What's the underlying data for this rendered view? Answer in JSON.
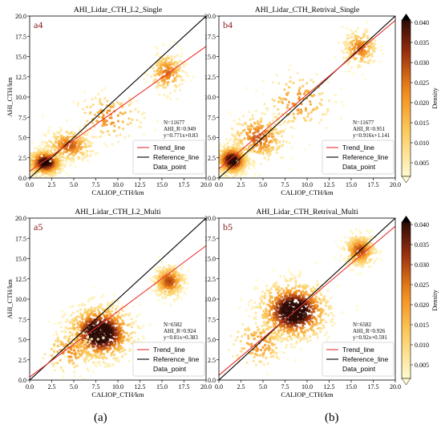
{
  "panels": [
    {
      "title": "AHI_Lidar_CTH_L2_Single",
      "tag": "a4",
      "xlabel": "CALIOP_CTH/km",
      "ylabel": "AHI_CTH/km",
      "stats": [
        "N=11677",
        "AHI_R=0.949",
        "y=0.771x+0.83"
      ],
      "legend": [
        "Trend_line",
        "Reference_line",
        "Data_point"
      ],
      "ticks": [
        "0.0",
        "2.5",
        "5.0",
        "7.5",
        "10.0",
        "12.5",
        "15.0",
        "17.5",
        "20.0"
      ]
    },
    {
      "title": "AHI_Lidar_CTH_Retrival_Single",
      "tag": "b4",
      "xlabel": "CALIOP_CTH/km",
      "ylabel": "",
      "stats": [
        "N=11677",
        "AHI_R=0.951",
        "y=0.916x+1.141"
      ],
      "legend": [
        "Trend_line",
        "Reference_line",
        "Data_point"
      ],
      "ticks": [
        "0.0",
        "2.5",
        "5.0",
        "7.5",
        "10.0",
        "12.5",
        "15.0",
        "17.5",
        "20.0"
      ]
    },
    {
      "title": "AHI_Lidar_CTH_L2_Multi",
      "tag": "a5",
      "xlabel": "CALIOP_CTH/km",
      "ylabel": "AHI_CTH/km",
      "stats": [
        "N=6582",
        "AHI_R=0.924",
        "y=0.81x+0.383"
      ],
      "legend": [
        "Trend_line",
        "Reference_line",
        "Data_point"
      ],
      "ticks": [
        "0.0",
        "2.5",
        "5.0",
        "7.5",
        "10.0",
        "12.5",
        "15.0",
        "17.5",
        "20.0"
      ]
    },
    {
      "title": "AHI_Lidar_CTH_Retrival_Multi",
      "tag": "b5",
      "xlabel": "CALIOP_CTH/km",
      "ylabel": "",
      "stats": [
        "N=6582",
        "AHI_R=0.926",
        "y=0.92x+0.591"
      ],
      "legend": [
        "Trend_line",
        "Reference_line",
        "Data_point"
      ],
      "ticks": [
        "0.0",
        "2.5",
        "5.0",
        "7.5",
        "10.0",
        "12.5",
        "15.0",
        "17.5",
        "20.0"
      ]
    }
  ],
  "colorbar": {
    "label": "Density",
    "ticks": [
      "0.040",
      "0.035",
      "0.030",
      "0.025",
      "0.020",
      "0.015",
      "0.010",
      "0.005"
    ]
  },
  "captions": [
    "(a)",
    "(b)"
  ],
  "colors": {
    "trend": "#e8322f",
    "reference": "#000000",
    "density_low": "#fffbd0",
    "density_mid": "#f28a1a",
    "density_high": "#2b0a05"
  },
  "chart_data": [
    {
      "type": "scatter",
      "title": "AHI_Lidar_CTH_L2_Single",
      "xlabel": "CALIOP_CTH/km",
      "ylabel": "AHI_CTH/km",
      "xlim": [
        0,
        20
      ],
      "ylim": [
        0,
        20
      ],
      "n": 11677,
      "r": 0.949,
      "trend": {
        "slope": 0.771,
        "intercept": 0.83
      },
      "reference": {
        "slope": 1,
        "intercept": 0
      },
      "density_clusters": [
        {
          "x": 1.8,
          "y": 1.9,
          "sx": 1.0,
          "sy": 0.8,
          "w": 0.55
        },
        {
          "x": 4.5,
          "y": 4.0,
          "sx": 1.4,
          "sy": 1.0,
          "w": 0.2
        },
        {
          "x": 9.0,
          "y": 7.5,
          "sx": 2.0,
          "sy": 1.5,
          "w": 0.1
        },
        {
          "x": 15.6,
          "y": 13.0,
          "sx": 1.0,
          "sy": 1.3,
          "w": 0.15
        }
      ]
    },
    {
      "type": "scatter",
      "title": "AHI_Lidar_CTH_Retrival_Single",
      "xlabel": "CALIOP_CTH/km",
      "ylabel": "",
      "xlim": [
        0,
        20
      ],
      "ylim": [
        0,
        20
      ],
      "n": 11677,
      "r": 0.951,
      "trend": {
        "slope": 0.916,
        "intercept": 1.141
      },
      "reference": {
        "slope": 1,
        "intercept": 0
      },
      "density_clusters": [
        {
          "x": 1.5,
          "y": 2.2,
          "sx": 0.9,
          "sy": 0.9,
          "w": 0.55
        },
        {
          "x": 4.5,
          "y": 5.0,
          "sx": 1.6,
          "sy": 1.5,
          "w": 0.2
        },
        {
          "x": 9.0,
          "y": 9.5,
          "sx": 2.0,
          "sy": 1.8,
          "w": 0.1
        },
        {
          "x": 16.0,
          "y": 16.0,
          "sx": 1.0,
          "sy": 1.2,
          "w": 0.15
        }
      ]
    },
    {
      "type": "scatter",
      "title": "AHI_Lidar_CTH_L2_Multi",
      "xlabel": "CALIOP_CTH/km",
      "ylabel": "AHI_CTH/km",
      "xlim": [
        0,
        20
      ],
      "ylim": [
        0,
        20
      ],
      "n": 6582,
      "r": 0.924,
      "trend": {
        "slope": 0.81,
        "intercept": 0.383
      },
      "reference": {
        "slope": 1,
        "intercept": 0
      },
      "density_clusters": [
        {
          "x": 8.0,
          "y": 5.8,
          "sx": 1.9,
          "sy": 1.7,
          "w": 0.65
        },
        {
          "x": 15.8,
          "y": 12.2,
          "sx": 0.9,
          "sy": 1.0,
          "w": 0.25
        },
        {
          "x": 4.5,
          "y": 3.5,
          "sx": 1.6,
          "sy": 1.3,
          "w": 0.1
        }
      ]
    },
    {
      "type": "scatter",
      "title": "AHI_Lidar_CTH_Retrival_Multi",
      "xlabel": "CALIOP_CTH/km",
      "ylabel": "",
      "xlim": [
        0,
        20
      ],
      "ylim": [
        0,
        20
      ],
      "n": 6582,
      "r": 0.926,
      "trend": {
        "slope": 0.92,
        "intercept": 0.591
      },
      "reference": {
        "slope": 1,
        "intercept": 0
      },
      "density_clusters": [
        {
          "x": 8.5,
          "y": 8.5,
          "sx": 2.0,
          "sy": 1.8,
          "w": 0.65
        },
        {
          "x": 16.0,
          "y": 16.0,
          "sx": 0.9,
          "sy": 1.0,
          "w": 0.25
        },
        {
          "x": 4.5,
          "y": 4.5,
          "sx": 1.6,
          "sy": 1.5,
          "w": 0.1
        }
      ]
    }
  ]
}
